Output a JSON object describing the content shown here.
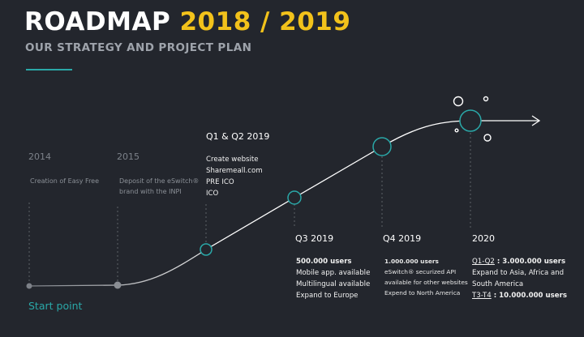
{
  "header": {
    "title_white": "ROADMAP",
    "title_yellow": "2018 / 2019",
    "subtitle": "OUR STRATEGY AND PROJECT PLAN"
  },
  "colors": {
    "background": "#23262d",
    "accent_yellow": "#f2c21b",
    "accent_teal": "#2aa8a8",
    "muted_text": "#8b9097",
    "line_past": "#8a8e94",
    "line_future": "#ffffff"
  },
  "milestones": {
    "m2014": {
      "year": "2014",
      "lines": [
        "Creation of Easy Free"
      ]
    },
    "m2015": {
      "year": "2015",
      "lines": [
        "Deposit of the eSwitch®",
        "brand with the INPI"
      ]
    },
    "q1q2_2019": {
      "heading": "Q1 & Q2 2019",
      "lines": [
        "Create website",
        "Sharemeall.com",
        "PRE ICO",
        "ICO"
      ]
    },
    "q3_2019": {
      "heading": "Q3 2019",
      "lines": [
        "500.000 users",
        "Mobile app. available",
        "Multilingual available",
        "Expand to Europe"
      ]
    },
    "q4_2019": {
      "heading": "Q4 2019",
      "lines": [
        "1.000.000 users",
        "eSwitch® securized API",
        "available for other websites",
        "Expend to North America"
      ]
    },
    "y2020": {
      "heading": "2020",
      "q1q2_label": "Q1-Q2",
      "q1q2_value": " : 3.000.000 users",
      "line2": "Expand to Asia, Africa and",
      "line3": "South America",
      "q3q4_label": "T3-T4",
      "q3q4_value": " : 10.000.000 users"
    }
  },
  "start_point": "Start point"
}
